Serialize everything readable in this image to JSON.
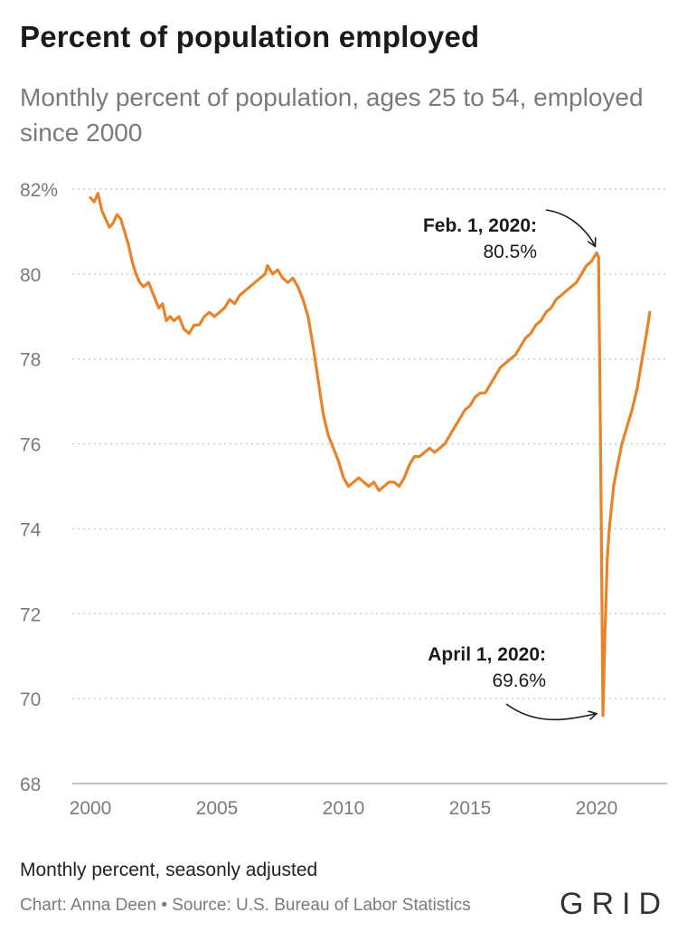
{
  "chart_data": {
    "type": "line",
    "title": "Percent of population employed",
    "subtitle": "Monthly percent of population, ages 25 to 54, employed since 2000",
    "xlabel": "",
    "ylabel": "",
    "xlim": [
      2000,
      2022.2
    ],
    "ylim": [
      68,
      82
    ],
    "y_ticks": [
      {
        "value": 82,
        "label": "82%"
      },
      {
        "value": 80,
        "label": "80"
      },
      {
        "value": 78,
        "label": "78"
      },
      {
        "value": 76,
        "label": "76"
      },
      {
        "value": 74,
        "label": "74"
      },
      {
        "value": 72,
        "label": "72"
      },
      {
        "value": 70,
        "label": "70"
      },
      {
        "value": 68,
        "label": "68"
      }
    ],
    "x_ticks": [
      {
        "value": 2000,
        "label": "2000"
      },
      {
        "value": 2005,
        "label": "2005"
      },
      {
        "value": 2010,
        "label": "2010"
      },
      {
        "value": 2015,
        "label": "2015"
      },
      {
        "value": 2020,
        "label": "2020"
      }
    ],
    "grid": true,
    "series": [
      {
        "color": "#e8832a",
        "points": [
          [
            2000.0,
            81.8
          ],
          [
            2000.15,
            81.7
          ],
          [
            2000.3,
            81.9
          ],
          [
            2000.45,
            81.5
          ],
          [
            2000.6,
            81.3
          ],
          [
            2000.75,
            81.1
          ],
          [
            2000.9,
            81.2
          ],
          [
            2001.05,
            81.4
          ],
          [
            2001.2,
            81.3
          ],
          [
            2001.35,
            81.0
          ],
          [
            2001.5,
            80.7
          ],
          [
            2001.65,
            80.3
          ],
          [
            2001.8,
            80.0
          ],
          [
            2001.95,
            79.8
          ],
          [
            2002.1,
            79.7
          ],
          [
            2002.3,
            79.8
          ],
          [
            2002.5,
            79.5
          ],
          [
            2002.7,
            79.2
          ],
          [
            2002.85,
            79.3
          ],
          [
            2003.0,
            78.9
          ],
          [
            2003.15,
            79.0
          ],
          [
            2003.3,
            78.9
          ],
          [
            2003.5,
            79.0
          ],
          [
            2003.7,
            78.7
          ],
          [
            2003.9,
            78.6
          ],
          [
            2004.1,
            78.8
          ],
          [
            2004.3,
            78.8
          ],
          [
            2004.5,
            79.0
          ],
          [
            2004.7,
            79.1
          ],
          [
            2004.9,
            79.0
          ],
          [
            2005.1,
            79.1
          ],
          [
            2005.3,
            79.2
          ],
          [
            2005.5,
            79.4
          ],
          [
            2005.7,
            79.3
          ],
          [
            2005.9,
            79.5
          ],
          [
            2006.1,
            79.6
          ],
          [
            2006.3,
            79.7
          ],
          [
            2006.5,
            79.8
          ],
          [
            2006.7,
            79.9
          ],
          [
            2006.9,
            80.0
          ],
          [
            2007.0,
            80.2
          ],
          [
            2007.2,
            80.0
          ],
          [
            2007.4,
            80.1
          ],
          [
            2007.6,
            79.9
          ],
          [
            2007.8,
            79.8
          ],
          [
            2008.0,
            79.9
          ],
          [
            2008.2,
            79.7
          ],
          [
            2008.4,
            79.4
          ],
          [
            2008.6,
            79.0
          ],
          [
            2008.8,
            78.3
          ],
          [
            2009.0,
            77.5
          ],
          [
            2009.2,
            76.7
          ],
          [
            2009.4,
            76.2
          ],
          [
            2009.6,
            75.9
          ],
          [
            2009.8,
            75.6
          ],
          [
            2010.0,
            75.2
          ],
          [
            2010.2,
            75.0
          ],
          [
            2010.4,
            75.1
          ],
          [
            2010.6,
            75.2
          ],
          [
            2010.8,
            75.1
          ],
          [
            2011.0,
            75.0
          ],
          [
            2011.2,
            75.1
          ],
          [
            2011.4,
            74.9
          ],
          [
            2011.6,
            75.0
          ],
          [
            2011.8,
            75.1
          ],
          [
            2012.0,
            75.1
          ],
          [
            2012.2,
            75.0
          ],
          [
            2012.4,
            75.2
          ],
          [
            2012.6,
            75.5
          ],
          [
            2012.8,
            75.7
          ],
          [
            2013.0,
            75.7
          ],
          [
            2013.2,
            75.8
          ],
          [
            2013.4,
            75.9
          ],
          [
            2013.6,
            75.8
          ],
          [
            2013.8,
            75.9
          ],
          [
            2014.0,
            76.0
          ],
          [
            2014.2,
            76.2
          ],
          [
            2014.4,
            76.4
          ],
          [
            2014.6,
            76.6
          ],
          [
            2014.8,
            76.8
          ],
          [
            2015.0,
            76.9
          ],
          [
            2015.2,
            77.1
          ],
          [
            2015.4,
            77.2
          ],
          [
            2015.6,
            77.2
          ],
          [
            2015.8,
            77.4
          ],
          [
            2016.0,
            77.6
          ],
          [
            2016.2,
            77.8
          ],
          [
            2016.4,
            77.9
          ],
          [
            2016.6,
            78.0
          ],
          [
            2016.8,
            78.1
          ],
          [
            2017.0,
            78.3
          ],
          [
            2017.2,
            78.5
          ],
          [
            2017.4,
            78.6
          ],
          [
            2017.6,
            78.8
          ],
          [
            2017.8,
            78.9
          ],
          [
            2018.0,
            79.1
          ],
          [
            2018.2,
            79.2
          ],
          [
            2018.4,
            79.4
          ],
          [
            2018.6,
            79.5
          ],
          [
            2018.8,
            79.6
          ],
          [
            2019.0,
            79.7
          ],
          [
            2019.2,
            79.8
          ],
          [
            2019.4,
            80.0
          ],
          [
            2019.6,
            80.2
          ],
          [
            2019.8,
            80.3
          ],
          [
            2020.0,
            80.5
          ],
          [
            2020.08,
            80.4
          ],
          [
            2020.17,
            75.0
          ],
          [
            2020.25,
            69.6
          ],
          [
            2020.33,
            71.5
          ],
          [
            2020.42,
            73.3
          ],
          [
            2020.5,
            74.0
          ],
          [
            2020.67,
            75.0
          ],
          [
            2020.83,
            75.5
          ],
          [
            2021.0,
            76.0
          ],
          [
            2021.2,
            76.4
          ],
          [
            2021.4,
            76.8
          ],
          [
            2021.6,
            77.3
          ],
          [
            2021.8,
            78.0
          ],
          [
            2022.0,
            78.7
          ],
          [
            2022.1,
            79.1
          ]
        ]
      }
    ],
    "annotations": [
      {
        "title": "Feb. 1, 2020:",
        "value": "80.5%",
        "x": 2020.0,
        "y": 80.5
      },
      {
        "title": "April 1, 2020:",
        "value": "69.6%",
        "x": 2020.25,
        "y": 69.6
      }
    ]
  },
  "footer": {
    "note": "Monthly percent, seasonly adjusted",
    "credit": "Chart: Anna Deen • Source: U.S. Bureau of Labor Statistics",
    "brand": "GRID"
  }
}
